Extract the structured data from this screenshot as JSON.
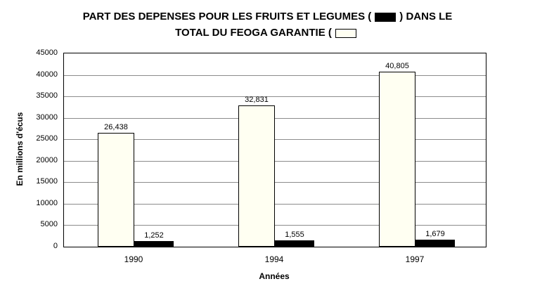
{
  "title": {
    "line1_before": "PART DES DEPENSES POUR LES FRUITS ET LEGUMES (",
    "line1_after": ") DANS LE",
    "line2_before": "TOTAL DU FEOGA GARANTIE (",
    "line2_after": ""
  },
  "chart_data": {
    "type": "bar",
    "title": "PART DES DEPENSES POUR LES FRUITS ET LEGUMES ( ) DANS LE TOTAL DU FEOGA GARANTIE (",
    "categories": [
      "1990",
      "1994",
      "1997"
    ],
    "series": [
      {
        "name": "TOTAL DU FEOGA GARANTIE",
        "color": "#FFFFF2",
        "values": [
          26438,
          32831,
          40805
        ],
        "value_labels": [
          "26,438",
          "32,831",
          "40,805"
        ]
      },
      {
        "name": "FRUITS ET LEGUMES",
        "color": "#000000",
        "values": [
          1252,
          1555,
          1679
        ],
        "value_labels": [
          "1,252",
          "1,555",
          "1,679"
        ]
      }
    ],
    "xlabel": "Années",
    "ylabel": "En millions d'écus",
    "ylim": [
      0,
      45000
    ],
    "ytick_step": 5000,
    "yticks": [
      "0",
      "5000",
      "10000",
      "15000",
      "20000",
      "25000",
      "30000",
      "35000",
      "40000",
      "45000"
    ],
    "grid": true,
    "legend_position": "in-title"
  }
}
